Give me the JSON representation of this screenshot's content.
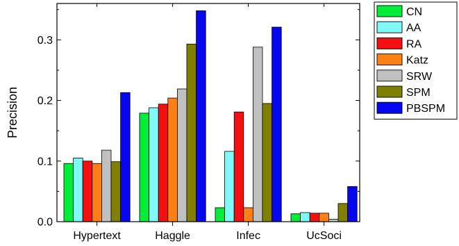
{
  "chart_data": {
    "type": "bar",
    "title": "",
    "xlabel": "",
    "ylabel": "Precision",
    "ylim": [
      0,
      0.36
    ],
    "yticks": [
      0.0,
      0.1,
      0.2,
      0.3
    ],
    "ytick_labels": [
      "0.0",
      "0.1",
      "0.2",
      "0.3"
    ],
    "categories": [
      "Hypertext",
      "Haggle",
      "Infec",
      "UcSoci"
    ],
    "grid": false,
    "legend_position": "outside-right-top",
    "series": [
      {
        "name": "CN",
        "color": "#00ee3a",
        "values": [
          0.096,
          0.179,
          0.023,
          0.013
        ]
      },
      {
        "name": "AA",
        "color": "#7ffaf8",
        "values": [
          0.105,
          0.188,
          0.116,
          0.015
        ]
      },
      {
        "name": "RA",
        "color": "#f21010",
        "values": [
          0.1,
          0.194,
          0.181,
          0.014
        ]
      },
      {
        "name": "Katz",
        "color": "#ff7f17",
        "values": [
          0.096,
          0.204,
          0.023,
          0.014
        ]
      },
      {
        "name": "SRW",
        "color": "#c0c0c0",
        "values": [
          0.118,
          0.219,
          0.288,
          0.004
        ]
      },
      {
        "name": "SPM",
        "color": "#807f02",
        "values": [
          0.099,
          0.293,
          0.195,
          0.03
        ]
      },
      {
        "name": "PBSPM",
        "color": "#0606f0",
        "values": [
          0.213,
          0.348,
          0.321,
          0.058
        ]
      }
    ]
  }
}
